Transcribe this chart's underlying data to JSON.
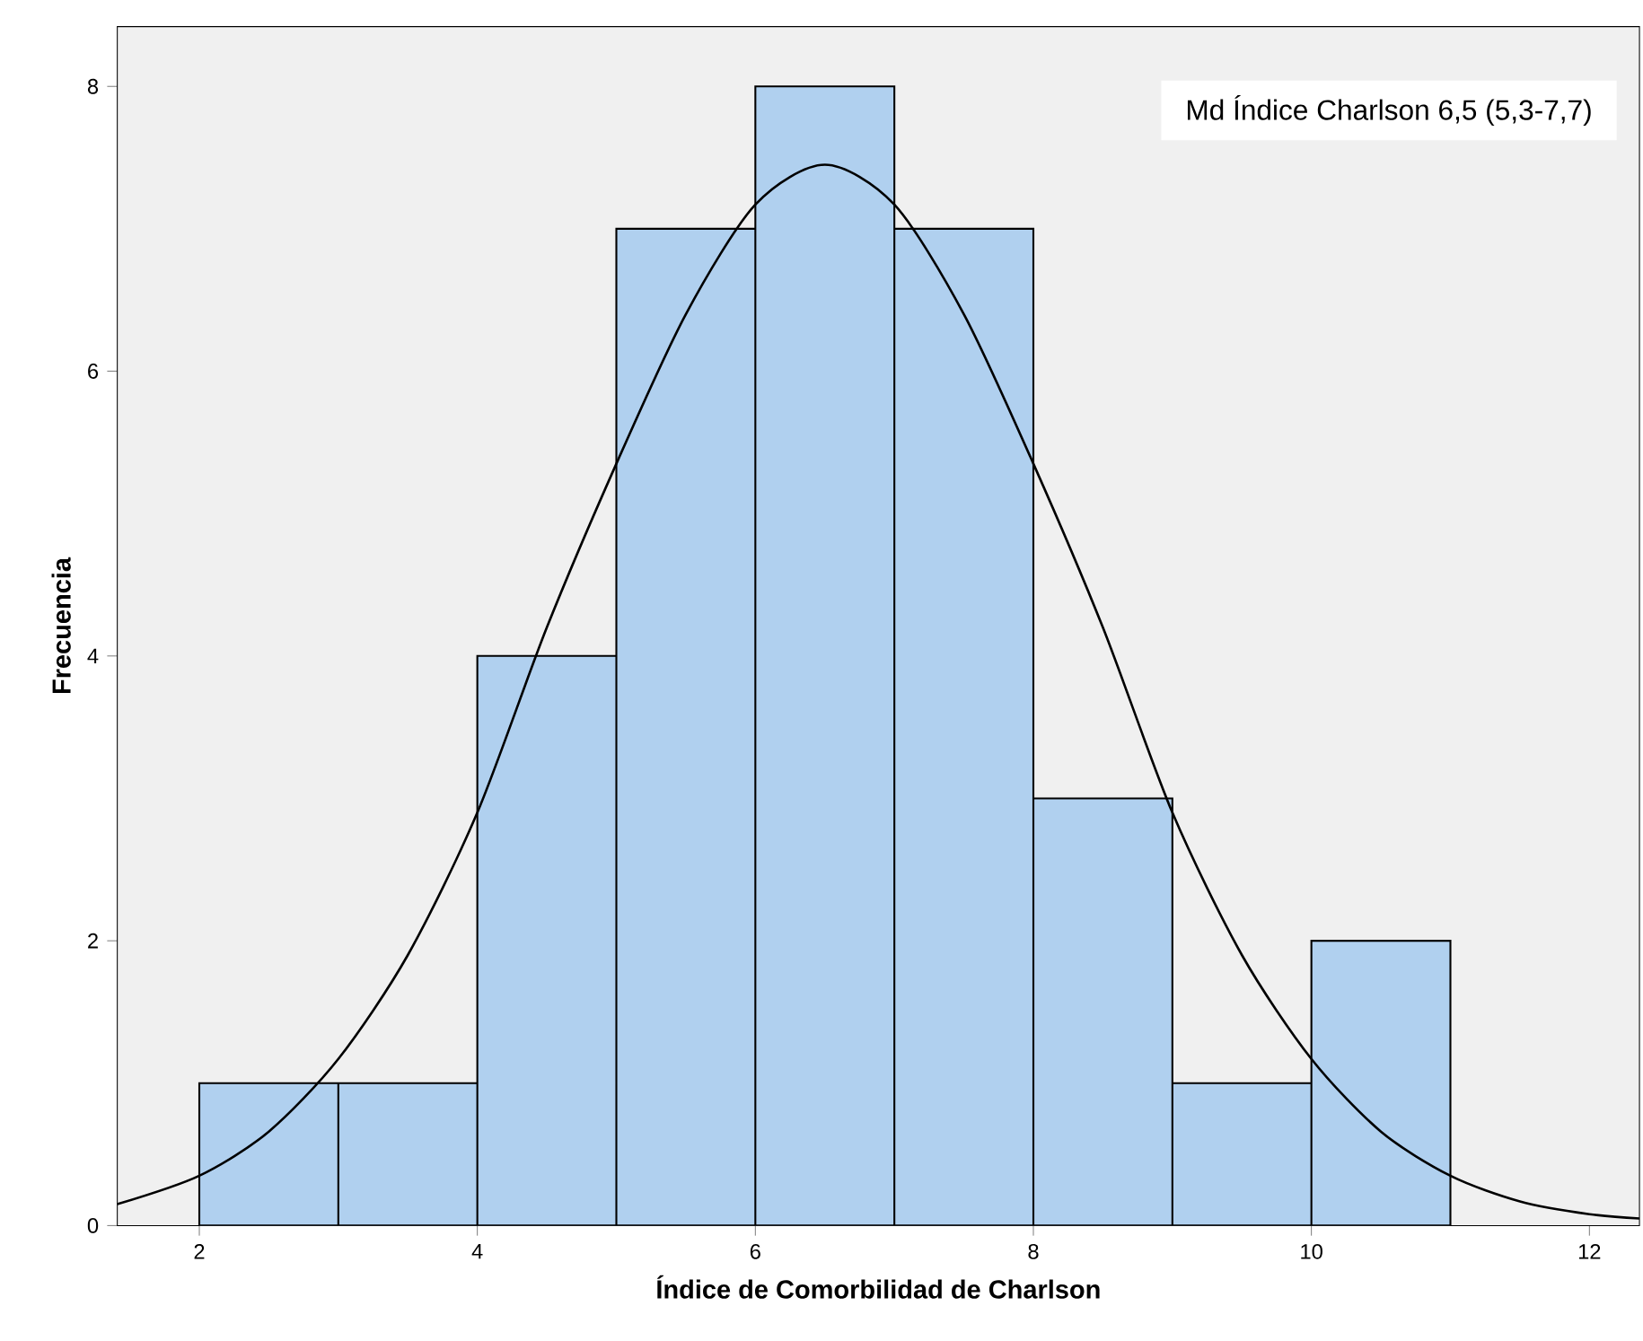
{
  "chart_data": {
    "type": "histogram",
    "xlabel": "Índice de Comorbilidad de Charlson",
    "ylabel": "Frecuencia",
    "xlim": [
      1.41,
      12.36
    ],
    "ylim": [
      0,
      8.42
    ],
    "xticks": [
      2,
      4,
      6,
      8,
      10,
      12
    ],
    "yticks": [
      0,
      2,
      4,
      6,
      8
    ],
    "annotations": [
      "Md Índice Charlson 6,5 (5,3-7,7)"
    ],
    "series": [
      {
        "color": "#b0d0ef",
        "bins": [
          2,
          3,
          4,
          5,
          6,
          7,
          8,
          9,
          10,
          11
        ],
        "values": [
          1,
          1,
          4,
          7,
          8,
          7,
          3,
          1,
          2
        ]
      },
      {
        "type": "line",
        "color": "#000000",
        "x": [
          1.41,
          2,
          2.5,
          3,
          3.5,
          4,
          4.5,
          5,
          5.5,
          6,
          6.5,
          7,
          7.5,
          8,
          8.5,
          9,
          9.5,
          10,
          10.5,
          11,
          11.5,
          12,
          12.36
        ],
        "values": [
          0.15,
          0.35,
          0.66,
          1.17,
          1.9,
          2.9,
          4.2,
          5.35,
          6.4,
          7.17,
          7.45,
          7.17,
          6.4,
          5.35,
          4.2,
          2.9,
          1.9,
          1.17,
          0.66,
          0.35,
          0.17,
          0.08,
          0.05
        ]
      }
    ]
  }
}
